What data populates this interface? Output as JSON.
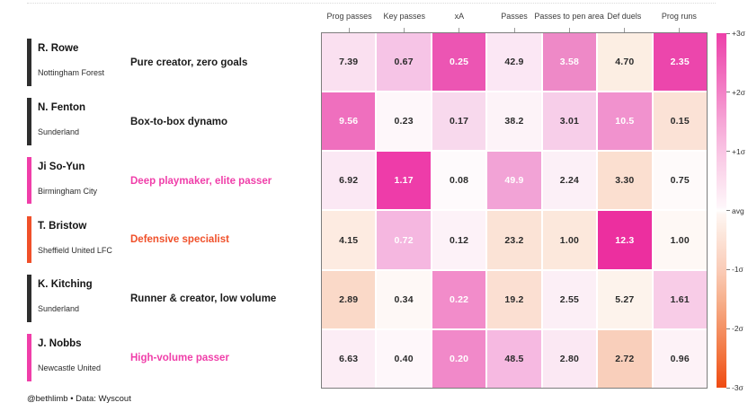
{
  "footer": "@bethlimb  •  Data: Wyscout",
  "chart_data": {
    "type": "heatmap",
    "title": "",
    "columns": [
      "Prog passes",
      "Key passes",
      "xA",
      "Passes",
      "Passes to pen area",
      "Def duels",
      "Prog runs"
    ],
    "value_scale": "per-column z-score, diverging colormap (pink = above avg, orange = below avg)",
    "rows": [
      {
        "player": "R. Rowe",
        "club": "Nottingham Forest",
        "annotation": "Pure creator, zero goals",
        "accent_color": "#2E2E2E",
        "annotation_color": "#1B1B1B",
        "values": [
          "7.39",
          "0.67",
          "0.25",
          "42.9",
          "3.58",
          "4.70",
          "2.35"
        ],
        "cell_colors": [
          "#FAE0F0",
          "#F6C4E6",
          "#EC55B3",
          "#FBE7F4",
          "#EE89C7",
          "#FCEEE3",
          "#EC46AC"
        ],
        "value_text_colors": [
          "dark",
          "dark",
          "white",
          "dark",
          "white",
          "dark",
          "white"
        ]
      },
      {
        "player": "N. Fenton",
        "club": "Sunderland",
        "annotation": "Box-to-box dynamo",
        "accent_color": "#2E2E2E",
        "annotation_color": "#1B1B1B",
        "values": [
          "9.56",
          "0.23",
          "0.17",
          "38.2",
          "3.01",
          "10.5",
          "0.15"
        ],
        "cell_colors": [
          "#EF6FBE",
          "#FEF7FA",
          "#F8D9ED",
          "#FDF3F8",
          "#F7CEE9",
          "#F192CE",
          "#FBE2D6"
        ],
        "value_text_colors": [
          "white",
          "dark",
          "dark",
          "dark",
          "dark",
          "white",
          "dark"
        ]
      },
      {
        "player": "Ji So-Yun",
        "club": "Birmingham City",
        "annotation": "Deep playmaker, elite passer",
        "accent_color": "#F03EA9",
        "annotation_color": "#F03EA9",
        "values": [
          "6.92",
          "1.17",
          "0.08",
          "49.9",
          "2.24",
          "3.30",
          "0.75"
        ],
        "cell_colors": [
          "#FBE8F4",
          "#EE3CA9",
          "#FEFAFC",
          "#F2A3D6",
          "#FCF0F7",
          "#FBDFD0",
          "#FEFAFA"
        ],
        "value_text_colors": [
          "dark",
          "white",
          "dark",
          "white",
          "dark",
          "dark",
          "dark"
        ]
      },
      {
        "player": "T. Bristow",
        "club": "Sheffield United LFC",
        "annotation": "Defensive specialist",
        "accent_color": "#F0502A",
        "annotation_color": "#F0502A",
        "values": [
          "4.15",
          "0.72",
          "0.12",
          "23.2",
          "1.00",
          "12.3",
          "1.00"
        ],
        "cell_colors": [
          "#FDEBE1",
          "#F5B7E0",
          "#FDF2F8",
          "#FBE3D6",
          "#FCE8DC",
          "#EC2F9F",
          "#FEF8F5"
        ],
        "value_text_colors": [
          "dark",
          "white",
          "dark",
          "dark",
          "dark",
          "white",
          "dark"
        ]
      },
      {
        "player": "K. Kitching",
        "club": "Sunderland",
        "annotation": "Runner & creator, low volume",
        "accent_color": "#2E2E2E",
        "annotation_color": "#1B1B1B",
        "values": [
          "2.89",
          "0.34",
          "0.22",
          "19.2",
          "2.55",
          "5.27",
          "1.61"
        ],
        "cell_colors": [
          "#FAD9C8",
          "#FEF8F6",
          "#F28CCA",
          "#FBDFD2",
          "#FCEFF6",
          "#FDF3EC",
          "#F8CCE7"
        ],
        "value_text_colors": [
          "dark",
          "dark",
          "white",
          "dark",
          "dark",
          "dark",
          "dark"
        ]
      },
      {
        "player": "J. Nobbs",
        "club": "Newcastle United",
        "annotation": "High-volume passer",
        "accent_color": "#F03EA9",
        "annotation_color": "#F03EA9",
        "values": [
          "6.63",
          "0.40",
          "0.20",
          "48.5",
          "2.80",
          "2.72",
          "0.96"
        ],
        "cell_colors": [
          "#FCEDF5",
          "#FEF7FA",
          "#F189C9",
          "#F6B9E1",
          "#FBE8F3",
          "#F9CFBB",
          "#FDF2F7"
        ],
        "value_text_colors": [
          "dark",
          "dark",
          "white",
          "dark",
          "dark",
          "dark",
          "dark"
        ]
      }
    ],
    "colorbar": {
      "position": "right",
      "tick_labels": [
        "+3σ",
        "+2σ",
        "+1σ",
        "avg",
        "-1σ",
        "-2σ",
        "-3σ"
      ],
      "gradient": [
        "#ED3FA9 0%",
        "#EF5FB7 8%",
        "#F383C7 17%",
        "#F6A5D6 25%",
        "#F9C3E3 33%",
        "#FCE0EF 42%",
        "#FEF6FA 49%",
        "#FFFEFE 50%",
        "#FEF6F2 51%",
        "#FCE3D7 58%",
        "#FACBB6 67%",
        "#F7B18E 75%",
        "#F49265 83%",
        "#F26F39 92%",
        "#EF4A12 100%"
      ]
    }
  }
}
